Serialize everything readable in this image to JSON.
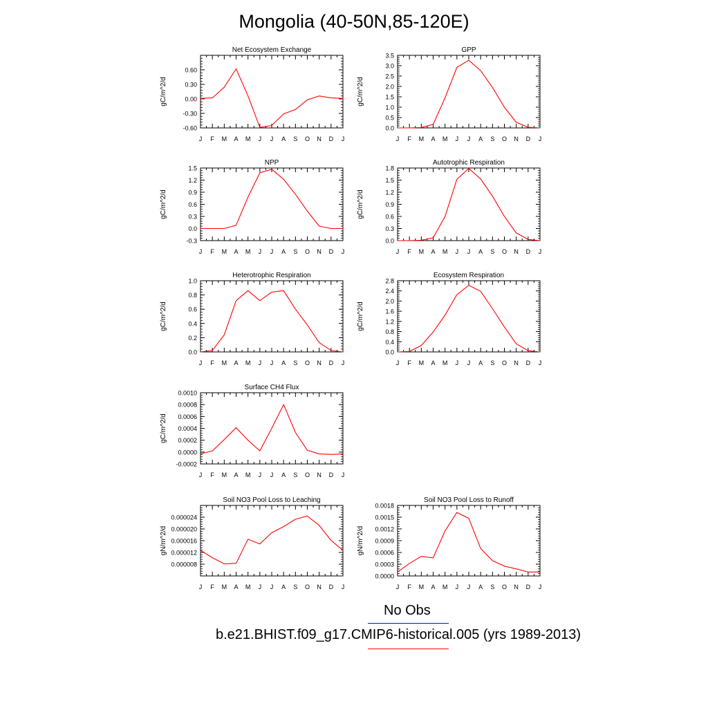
{
  "title": "Mongolia (40-50N,85-120E)",
  "colors": {
    "model": "#ff0000",
    "obs": "#0000ff"
  },
  "legend": [
    {
      "label": "No Obs",
      "color": "#0000ff"
    },
    {
      "label": "b.e21.BHIST.f09_g17.CMIP6-historical.005 (yrs 1989-2013)",
      "color": "#ff0000"
    }
  ],
  "chart_data": [
    {
      "type": "line",
      "title": "Net Ecosystem Exchange",
      "ylabel": "gC/m^2/d",
      "categories": [
        "J",
        "F",
        "M",
        "A",
        "M",
        "J",
        "J",
        "A",
        "S",
        "O",
        "N",
        "D",
        "J"
      ],
      "ylim": [
        -0.6,
        0.9
      ],
      "yticks": [
        "-0.60",
        "-0.30",
        "0.00",
        "0.30",
        "0.60"
      ],
      "yticks_values": [
        -0.6,
        -0.3,
        0.0,
        0.3,
        0.6
      ],
      "series": [
        {
          "values": [
            0.01,
            0.02,
            0.24,
            0.62,
            0.06,
            -0.59,
            -0.55,
            -0.31,
            -0.22,
            -0.02,
            0.06,
            0.02,
            0.01
          ]
        }
      ]
    },
    {
      "type": "line",
      "title": "GPP",
      "ylabel": "gC/m^2/d",
      "categories": [
        "J",
        "F",
        "M",
        "A",
        "M",
        "J",
        "J",
        "A",
        "S",
        "O",
        "N",
        "D",
        "J"
      ],
      "ylim": [
        0,
        3.5
      ],
      "yticks": [
        "0.0",
        "0.5",
        "1.0",
        "1.5",
        "2.0",
        "2.5",
        "3.0",
        "3.5"
      ],
      "yticks_values": [
        0,
        0.5,
        1,
        1.5,
        2,
        2.5,
        3,
        3.5
      ],
      "series": [
        {
          "values": [
            0.0,
            0.0,
            0.02,
            0.17,
            1.45,
            2.92,
            3.26,
            2.76,
            1.95,
            1.0,
            0.27,
            0.03,
            0.0
          ]
        }
      ]
    },
    {
      "type": "line",
      "title": "NPP",
      "ylabel": "gC/m^2/d",
      "categories": [
        "J",
        "F",
        "M",
        "A",
        "M",
        "J",
        "J",
        "A",
        "S",
        "O",
        "N",
        "D",
        "J"
      ],
      "ylim": [
        -0.3,
        1.5
      ],
      "yticks": [
        "-0.3",
        "0.0",
        "0.3",
        "0.6",
        "0.9",
        "1.2",
        "1.5"
      ],
      "yticks_values": [
        -0.3,
        0,
        0.3,
        0.6,
        0.9,
        1.2,
        1.5
      ],
      "series": [
        {
          "values": [
            0.0,
            0.0,
            0.0,
            0.08,
            0.78,
            1.38,
            1.47,
            1.22,
            0.85,
            0.43,
            0.06,
            0.0,
            0.0
          ]
        }
      ]
    },
    {
      "type": "line",
      "title": "Autotrophic Respiration",
      "ylabel": "gC/m^2/d",
      "categories": [
        "J",
        "F",
        "M",
        "A",
        "M",
        "J",
        "J",
        "A",
        "S",
        "O",
        "N",
        "D",
        "J"
      ],
      "ylim": [
        0,
        1.8
      ],
      "yticks": [
        "0.0",
        "0.3",
        "0.6",
        "0.9",
        "1.2",
        "1.5",
        "1.8"
      ],
      "yticks_values": [
        0,
        0.3,
        0.6,
        0.9,
        1.2,
        1.5,
        1.8
      ],
      "series": [
        {
          "values": [
            0.0,
            0.0,
            0.01,
            0.07,
            0.6,
            1.52,
            1.79,
            1.53,
            1.1,
            0.6,
            0.19,
            0.03,
            0.0
          ]
        }
      ]
    },
    {
      "type": "line",
      "title": "Heterotrophic Respiration",
      "ylabel": "gC/m^2/d",
      "categories": [
        "J",
        "F",
        "M",
        "A",
        "M",
        "J",
        "J",
        "A",
        "S",
        "O",
        "N",
        "D",
        "J"
      ],
      "ylim": [
        0,
        1.0
      ],
      "yticks": [
        "0.0",
        "0.2",
        "0.4",
        "0.6",
        "0.8",
        "1.0"
      ],
      "yticks_values": [
        0,
        0.2,
        0.4,
        0.6,
        0.8,
        1.0
      ],
      "series": [
        {
          "values": [
            0.0,
            0.02,
            0.24,
            0.72,
            0.86,
            0.72,
            0.84,
            0.86,
            0.6,
            0.38,
            0.13,
            0.02,
            0.0
          ]
        }
      ]
    },
    {
      "type": "line",
      "title": "Ecosystem Respiration",
      "ylabel": "gC/m^2/d",
      "categories": [
        "J",
        "F",
        "M",
        "A",
        "M",
        "J",
        "J",
        "A",
        "S",
        "O",
        "N",
        "D",
        "J"
      ],
      "ylim": [
        0,
        2.8
      ],
      "yticks": [
        "0.0",
        "0.4",
        "0.8",
        "1.2",
        "1.6",
        "2.0",
        "2.4",
        "2.8"
      ],
      "yticks_values": [
        0,
        0.4,
        0.8,
        1.2,
        1.6,
        2.0,
        2.4,
        2.8
      ],
      "series": [
        {
          "values": [
            0.0,
            0.02,
            0.25,
            0.78,
            1.45,
            2.25,
            2.62,
            2.38,
            1.7,
            0.98,
            0.32,
            0.05,
            0.0
          ]
        }
      ]
    },
    {
      "type": "line",
      "title": "Surface CH4 Flux",
      "ylabel": "gC/m^2/d",
      "categories": [
        "J",
        "F",
        "M",
        "A",
        "M",
        "J",
        "J",
        "A",
        "S",
        "O",
        "N",
        "D",
        "J"
      ],
      "ylim": [
        -0.0002,
        0.001
      ],
      "yticks": [
        "-0.0002",
        "0.0000",
        "0.0002",
        "0.0004",
        "0.0006",
        "0.0008",
        "0.0010"
      ],
      "yticks_values": [
        -0.0002,
        0,
        0.0002,
        0.0004,
        0.0006,
        0.0008,
        0.001
      ],
      "series": [
        {
          "values": [
            -3e-05,
            2e-05,
            0.00021,
            0.00041,
            0.0002,
            2e-05,
            0.0004,
            0.0008,
            0.00033,
            3e-05,
            -3e-05,
            -4e-05,
            -3e-05
          ]
        }
      ]
    },
    {
      "type": "line",
      "title": "Soil NO3 Pool Loss to Leaching",
      "ylabel": "gN/m^2/d",
      "categories": [
        "J",
        "F",
        "M",
        "A",
        "M",
        "J",
        "J",
        "A",
        "S",
        "O",
        "N",
        "D",
        "J"
      ],
      "ylim": [
        4e-06,
        2.8e-05
      ],
      "yticks": [
        "0.000008",
        "0.000012",
        "0.000016",
        "0.000020",
        "0.000024"
      ],
      "yticks_values": [
        8e-06,
        1.2e-05,
        1.6e-05,
        2e-05,
        2.4e-05
      ],
      "series": [
        {
          "values": [
            1.27e-05,
            1.02e-05,
            8.1e-06,
            8.3e-06,
            1.65e-05,
            1.49e-05,
            1.87e-05,
            2.08e-05,
            2.33e-05,
            2.44e-05,
            2.12e-05,
            1.61e-05,
            1.27e-05
          ]
        }
      ]
    },
    {
      "type": "line",
      "title": "Soil NO3 Pool Loss to Runoff",
      "ylabel": "gN/m^2/d",
      "categories": [
        "J",
        "F",
        "M",
        "A",
        "M",
        "J",
        "J",
        "A",
        "S",
        "O",
        "N",
        "D",
        "J"
      ],
      "ylim": [
        0,
        0.0018
      ],
      "yticks": [
        "0.0000",
        "0.0003",
        "0.0006",
        "0.0009",
        "0.0012",
        "0.0015",
        "0.0018"
      ],
      "yticks_values": [
        0,
        0.0003,
        0.0006,
        0.0009,
        0.0012,
        0.0015,
        0.0018
      ],
      "series": [
        {
          "values": [
            0.0001,
            0.00032,
            0.0005,
            0.00046,
            0.00115,
            0.00162,
            0.00147,
            0.0007,
            0.00039,
            0.00025,
            0.00018,
            0.0001,
            0.0001
          ]
        }
      ]
    }
  ]
}
